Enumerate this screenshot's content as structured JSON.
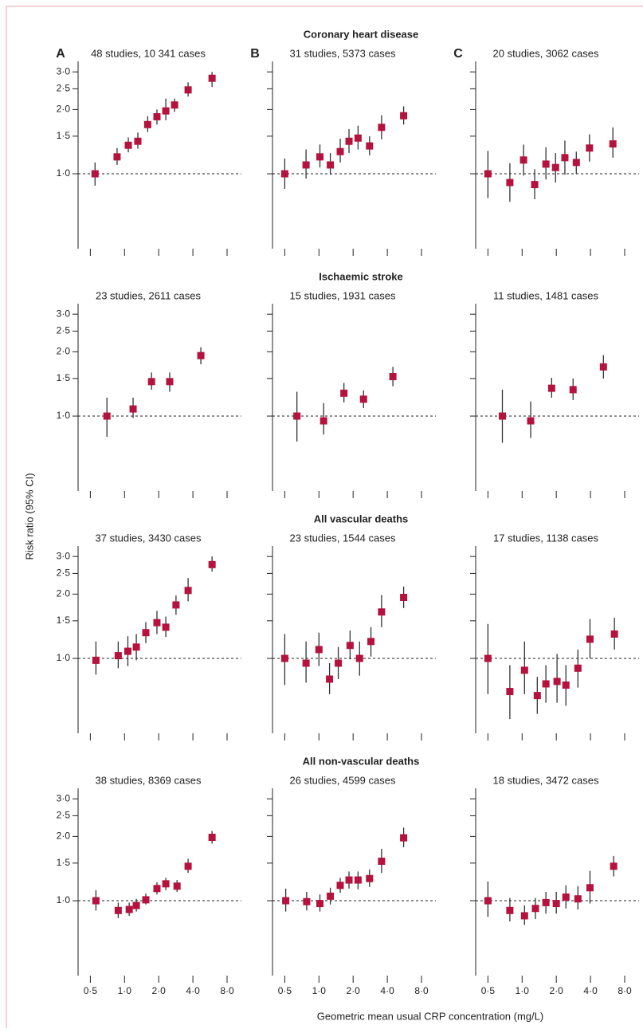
{
  "chart_data": {
    "type": "scatter",
    "xlabel": "Geometric mean usual CRP concentration (mg/L)",
    "ylabel": "Risk ratio (95% CI)",
    "log_x": true,
    "log_y": true,
    "xlim": [
      0.39,
      10.7
    ],
    "ylim": [
      0.446,
      3.36
    ],
    "xticks": [
      {
        "value": 0.5,
        "label": "0·5"
      },
      {
        "value": 1,
        "label": "1·0"
      },
      {
        "value": 2,
        "label": "2·0"
      },
      {
        "value": 4,
        "label": "4·0"
      },
      {
        "value": 8,
        "label": "8·0"
      }
    ],
    "yticks": [
      {
        "value": 1,
        "label": "1·0"
      },
      {
        "value": 1.5,
        "label": "1·5"
      },
      {
        "value": 2,
        "label": "2·0"
      },
      {
        "value": 2.5,
        "label": "2·5"
      },
      {
        "value": 3,
        "label": "3·0"
      }
    ],
    "reference_line": 1,
    "color": "#b5123e",
    "column_labels": [
      "A",
      "B",
      "C"
    ],
    "rows": [
      {
        "title": "Coronary heart disease",
        "panels": [
          {
            "title": "48 studies, 10 341 cases",
            "x": [
              0.55,
              0.86,
              1.08,
              1.31,
              1.6,
              1.93,
              2.31,
              2.76,
              3.63,
              5.9
            ],
            "values": [
              1.0,
              1.2,
              1.36,
              1.42,
              1.7,
              1.85,
              1.97,
              2.1,
              2.47,
              2.8
            ],
            "lower": [
              0.88,
              1.1,
              1.26,
              1.31,
              1.57,
              1.7,
              1.78,
              1.95,
              2.3,
              2.55
            ],
            "upper": [
              1.13,
              1.32,
              1.48,
              1.56,
              1.86,
              2.0,
              2.25,
              2.25,
              2.68,
              3.0
            ]
          },
          {
            "title": "31 studies, 5373 cases",
            "x": [
              0.5,
              0.77,
              1.02,
              1.26,
              1.54,
              1.84,
              2.21,
              2.79,
              3.56,
              5.57
            ],
            "values": [
              1.0,
              1.1,
              1.2,
              1.1,
              1.27,
              1.42,
              1.47,
              1.35,
              1.65,
              1.87
            ],
            "lower": [
              0.85,
              0.95,
              1.07,
              0.99,
              1.13,
              1.25,
              1.3,
              1.22,
              1.45,
              1.7
            ],
            "upper": [
              1.18,
              1.3,
              1.37,
              1.25,
              1.46,
              1.62,
              1.68,
              1.5,
              1.88,
              2.07
            ]
          },
          {
            "title": "20 studies, 3062 cases",
            "x": [
              0.5,
              0.78,
              1.03,
              1.29,
              1.62,
              1.97,
              2.38,
              3.0,
              3.92,
              6.3
            ],
            "values": [
              1.0,
              0.91,
              1.16,
              0.89,
              1.11,
              1.07,
              1.19,
              1.13,
              1.32,
              1.38
            ],
            "lower": [
              0.77,
              0.74,
              0.98,
              0.76,
              0.94,
              0.91,
              0.99,
              1.0,
              1.14,
              1.19
            ],
            "upper": [
              1.28,
              1.12,
              1.37,
              1.05,
              1.33,
              1.25,
              1.43,
              1.27,
              1.53,
              1.65
            ]
          }
        ]
      },
      {
        "title": "Ischaemic stroke",
        "panels": [
          {
            "title": "23 studies, 2611 cases",
            "x": [
              0.7,
              1.19,
              1.73,
              2.5,
              4.7
            ],
            "values": [
              1.0,
              1.08,
              1.45,
              1.45,
              1.92
            ],
            "lower": [
              0.8,
              0.98,
              1.33,
              1.3,
              1.75
            ],
            "upper": [
              1.22,
              1.22,
              1.6,
              1.6,
              2.1
            ]
          },
          {
            "title": "15 studies, 1931 cases",
            "x": [
              0.64,
              1.1,
              1.66,
              2.47,
              4.48
            ],
            "values": [
              1.0,
              0.95,
              1.28,
              1.2,
              1.53
            ],
            "lower": [
              0.76,
              0.82,
              1.16,
              1.09,
              1.38
            ],
            "upper": [
              1.3,
              1.15,
              1.43,
              1.32,
              1.7
            ]
          },
          {
            "title": "11 studies, 1481 cases",
            "x": [
              0.67,
              1.19,
              1.82,
              2.81,
              5.2
            ],
            "values": [
              1.0,
              0.95,
              1.35,
              1.33,
              1.7
            ],
            "lower": [
              0.75,
              0.79,
              1.22,
              1.19,
              1.5
            ],
            "upper": [
              1.33,
              1.17,
              1.51,
              1.5,
              1.93
            ]
          }
        ]
      },
      {
        "title": "All vascular deaths",
        "panels": [
          {
            "title": "37 studies, 3430 cases",
            "x": [
              0.56,
              0.88,
              1.07,
              1.27,
              1.54,
              1.93,
              2.31,
              2.84,
              3.63,
              5.9
            ],
            "values": [
              0.98,
              1.03,
              1.08,
              1.13,
              1.32,
              1.47,
              1.4,
              1.78,
              2.08,
              2.75
            ],
            "lower": [
              0.84,
              0.9,
              0.92,
              0.98,
              1.18,
              1.3,
              1.26,
              1.6,
              1.85,
              2.55
            ],
            "upper": [
              1.2,
              1.2,
              1.27,
              1.3,
              1.48,
              1.67,
              1.57,
              1.97,
              2.38,
              3.0
            ]
          },
          {
            "title": "23 studies, 1544 cases",
            "x": [
              0.5,
              0.77,
              1.0,
              1.24,
              1.48,
              1.88,
              2.28,
              2.87,
              3.56,
              5.57
            ],
            "values": [
              1.0,
              0.95,
              1.1,
              0.8,
              0.95,
              1.15,
              1.0,
              1.2,
              1.65,
              1.93
            ],
            "lower": [
              0.75,
              0.77,
              0.92,
              0.68,
              0.8,
              0.99,
              0.83,
              1.02,
              1.4,
              1.72
            ],
            "upper": [
              1.3,
              1.2,
              1.32,
              0.95,
              1.13,
              1.35,
              1.2,
              1.4,
              1.98,
              2.17
            ]
          },
          {
            "title": "17 studies, 1138 cases",
            "x": [
              0.5,
              0.78,
              1.05,
              1.36,
              1.62,
              2.03,
              2.43,
              3.1,
              3.96,
              6.5
            ],
            "values": [
              1.0,
              0.7,
              0.88,
              0.67,
              0.76,
              0.78,
              0.75,
              0.9,
              1.23,
              1.3
            ],
            "lower": [
              0.68,
              0.52,
              0.68,
              0.55,
              0.62,
              0.62,
              0.6,
              0.73,
              1.0,
              1.1
            ],
            "upper": [
              1.45,
              0.93,
              1.2,
              0.82,
              0.93,
              1.05,
              0.93,
              1.1,
              1.53,
              1.55
            ]
          }
        ]
      },
      {
        "title": "All non-vascular deaths",
        "panels": [
          {
            "title": "38 studies, 8369 cases",
            "x": [
              0.56,
              0.88,
              1.1,
              1.27,
              1.54,
              1.93,
              2.31,
              2.9,
              3.63,
              5.9
            ],
            "values": [
              1.0,
              0.9,
              0.91,
              0.95,
              1.01,
              1.14,
              1.2,
              1.17,
              1.45,
              1.98
            ],
            "lower": [
              0.9,
              0.83,
              0.85,
              0.89,
              0.96,
              1.07,
              1.12,
              1.1,
              1.35,
              1.85
            ],
            "upper": [
              1.12,
              0.98,
              0.98,
              1.02,
              1.08,
              1.22,
              1.28,
              1.25,
              1.57,
              2.12
            ]
          },
          {
            "title": "26 studies, 4599 cases",
            "x": [
              0.51,
              0.78,
              1.02,
              1.26,
              1.54,
              1.84,
              2.21,
              2.79,
              3.56,
              5.57
            ],
            "values": [
              1.0,
              0.99,
              0.97,
              1.05,
              1.18,
              1.25,
              1.25,
              1.27,
              1.53,
              1.97
            ],
            "lower": [
              0.89,
              0.9,
              0.89,
              0.96,
              1.09,
              1.14,
              1.13,
              1.16,
              1.35,
              1.78
            ],
            "upper": [
              1.14,
              1.1,
              1.07,
              1.15,
              1.28,
              1.37,
              1.37,
              1.4,
              1.75,
              2.2
            ]
          },
          {
            "title": "18 studies, 3472 cases",
            "x": [
              0.5,
              0.78,
              1.05,
              1.31,
              1.62,
              2.0,
              2.43,
              3.1,
              3.96,
              6.4
            ],
            "values": [
              1.0,
              0.9,
              0.85,
              0.92,
              0.98,
              0.97,
              1.04,
              1.02,
              1.15,
              1.45
            ],
            "lower": [
              0.84,
              0.8,
              0.77,
              0.82,
              0.87,
              0.87,
              0.92,
              0.91,
              0.97,
              1.3
            ],
            "upper": [
              1.23,
              1.03,
              0.95,
              1.03,
              1.1,
              1.1,
              1.18,
              1.17,
              1.38,
              1.62
            ]
          }
        ]
      }
    ]
  }
}
